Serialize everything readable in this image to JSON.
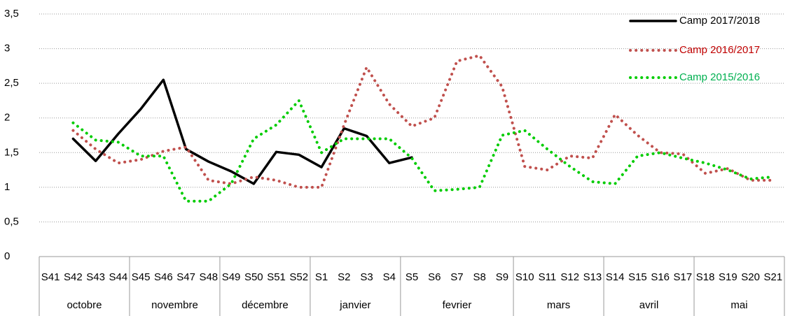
{
  "chart_data": {
    "type": "line",
    "categories": [
      "S41",
      "S42",
      "S43",
      "S44",
      "S45",
      "S46",
      "S47",
      "S48",
      "S49",
      "S50",
      "S51",
      "S52",
      "S1",
      "S2",
      "S3",
      "S4",
      "S5",
      "S6",
      "S7",
      "S8",
      "S9",
      "S10",
      "S11",
      "S12",
      "S13",
      "S14",
      "S15",
      "S16",
      "S17",
      "S18",
      "S19",
      "S20",
      "S21"
    ],
    "groups": [
      {
        "name": "octobre",
        "count": 4
      },
      {
        "name": "novembre",
        "count": 4
      },
      {
        "name": "décembre",
        "count": 4
      },
      {
        "name": "janvier",
        "count": 4
      },
      {
        "name": "fevrier",
        "count": 5
      },
      {
        "name": "mars",
        "count": 4
      },
      {
        "name": "avril",
        "count": 4
      },
      {
        "name": "mai",
        "count": 4
      }
    ],
    "series": [
      {
        "name": "Camp 2017/2018",
        "color": "#000000",
        "style": "solid",
        "values": [
          null,
          1.7,
          1.38,
          1.77,
          2.13,
          2.55,
          1.55,
          1.37,
          1.23,
          1.05,
          1.51,
          1.47,
          1.29,
          1.85,
          1.74,
          1.35,
          1.43,
          null,
          null,
          null,
          null,
          null,
          null,
          null,
          null,
          null,
          null,
          null,
          null,
          null,
          null,
          null,
          null
        ]
      },
      {
        "name": "Camp 2016/2017",
        "color": "#c0504d",
        "style": "dotted",
        "values": [
          null,
          1.82,
          1.55,
          1.35,
          1.4,
          1.52,
          1.58,
          1.1,
          1.05,
          1.15,
          1.1,
          1.0,
          1.0,
          1.9,
          2.73,
          2.2,
          1.88,
          2.0,
          2.82,
          2.9,
          2.45,
          1.3,
          1.25,
          1.45,
          1.42,
          2.05,
          1.75,
          1.5,
          1.48,
          1.2,
          1.27,
          1.1,
          1.1
        ]
      },
      {
        "name": "Camp 2015/2016",
        "color": "#00cc00",
        "style": "dotted",
        "values": [
          null,
          1.93,
          1.68,
          1.65,
          1.45,
          1.45,
          0.8,
          0.8,
          1.05,
          1.7,
          1.9,
          2.25,
          1.5,
          1.7,
          1.7,
          1.7,
          1.42,
          0.95,
          0.97,
          1.0,
          1.75,
          1.82,
          1.55,
          1.3,
          1.08,
          1.05,
          1.45,
          1.5,
          1.42,
          1.35,
          1.25,
          1.12,
          1.15
        ]
      }
    ],
    "legend_text_colors": [
      "#000000",
      "#c00000",
      "#00b050"
    ],
    "ylim": [
      0,
      3.5
    ],
    "yticks": [
      0,
      {
        "value": 0.5,
        "label": "0,5"
      },
      1,
      {
        "value": 1.5,
        "label": "1,5"
      },
      2,
      {
        "value": 2.5,
        "label": "2,5"
      },
      3,
      {
        "value": 3.5,
        "label": "3,5"
      }
    ],
    "grid": true
  }
}
